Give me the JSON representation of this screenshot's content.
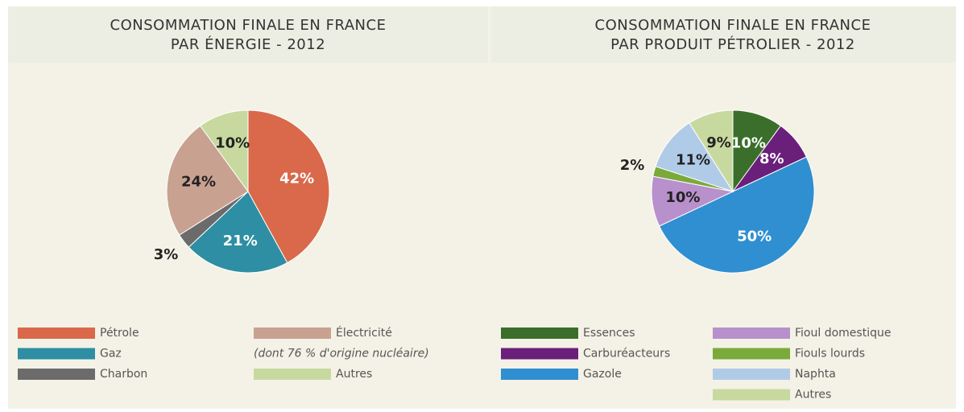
{
  "chart_data": [
    {
      "type": "pie",
      "title": "CONSOMMATION FINALE EN FRANCE",
      "subtitle": "PAR ÉNERGIE - 2012",
      "categories": [
        "Pétrole",
        "Gaz",
        "Charbon",
        "Électricité",
        "Autres"
      ],
      "values": [
        42,
        21,
        3,
        24,
        10
      ],
      "value_labels": [
        "42%",
        "21%",
        "3%",
        "24%",
        "10%"
      ],
      "colors": [
        "#d9694a",
        "#2e8ea3",
        "#6b6b6b",
        "#c8a191",
        "#c8d9a0"
      ],
      "legend_note": "(dont 76 % d'origine nucléaire)"
    },
    {
      "type": "pie",
      "title": "CONSOMMATION FINALE EN FRANCE",
      "subtitle": "PAR PRODUIT PÉTROLIER - 2012",
      "categories": [
        "Essences",
        "Carburéacteurs",
        "Gazole",
        "Fioul domestique",
        "Fiouls lourds",
        "Naphta",
        "Autres"
      ],
      "values": [
        10,
        8,
        50,
        10,
        2,
        11,
        9
      ],
      "value_labels": [
        "10%",
        "8%",
        "50%",
        "10%",
        "2%",
        "11%",
        "9%"
      ],
      "colors": [
        "#3a6e2a",
        "#6a1f7a",
        "#2f8fd0",
        "#b890cc",
        "#7aaa3a",
        "#b0cbe8",
        "#c8d9a0"
      ]
    }
  ]
}
